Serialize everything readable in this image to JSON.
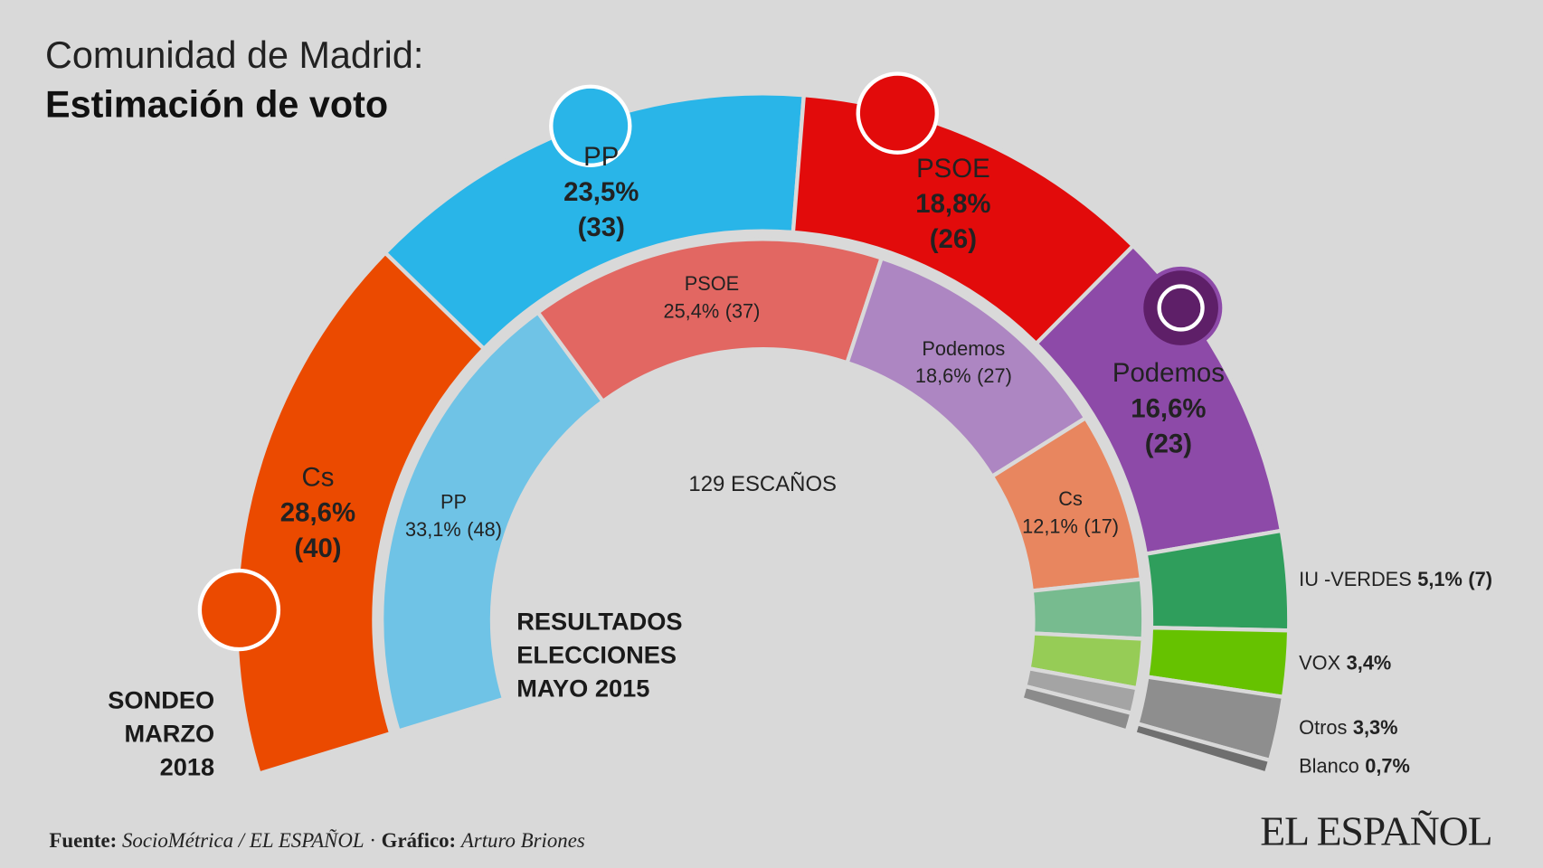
{
  "chart_data": {
    "type": "semi-donut",
    "title": "Comunidad de Madrid:",
    "subtitle": "Estimación de voto",
    "center_label": "129 ESCAÑOS",
    "series": [
      {
        "name": "SONDEO\nMARZO\n2018",
        "categories": [
          "Cs",
          "PP",
          "PSOE",
          "Podemos",
          "IU -VERDES",
          "VOX",
          "Otros",
          "Blanco"
        ],
        "values": [
          28.6,
          23.5,
          18.8,
          16.6,
          5.1,
          3.4,
          3.3,
          0.7
        ],
        "value_labels": [
          "28,6%",
          "23,5%",
          "18,8%",
          "16,6%",
          "5,1%",
          "3,4%",
          "3,3%",
          "0,7%"
        ],
        "seats": [
          40,
          33,
          26,
          23,
          7,
          null,
          null,
          null
        ],
        "seat_labels": [
          "(40)",
          "(33)",
          "(26)",
          "(23)",
          "(7)",
          null,
          null,
          null
        ],
        "colors": [
          "#eb4a00",
          "#29b5e8",
          "#e20b0b",
          "#8d4aa8",
          "#2f9e5c",
          "#66c200",
          "#8e8e8e",
          "#6f6f6f"
        ]
      },
      {
        "name": "RESULTADOS\nELECCIONES\nMAYO 2015",
        "categories": [
          "PP",
          "PSOE",
          "Podemos",
          "Cs",
          null,
          null,
          null,
          null
        ],
        "values": [
          33.1,
          25.4,
          18.6,
          12.1,
          4.2,
          3.5,
          1.8,
          1.3
        ],
        "value_labels": [
          "33,1%",
          "25,4%",
          "18,6%",
          "12,1%",
          null,
          null,
          null,
          null
        ],
        "seats": [
          48,
          37,
          27,
          17,
          null,
          null,
          null,
          null
        ],
        "seat_labels": [
          "(48)",
          "(37)",
          "(27)",
          "(17)",
          null,
          null,
          null,
          null
        ],
        "colors": [
          "#6fc3e6",
          "#e26762",
          "#ad86c2",
          "#e8865f",
          "#77bb8f",
          "#96cc56",
          "#a4a4a4",
          "#8b8b8b"
        ]
      }
    ],
    "footer": {
      "source_label": "Fuente:",
      "source": "SocioMétrica / EL ESPAÑOL",
      "separator": "·",
      "graphic_label": "Gráfico:",
      "graphic": "Arturo Briones"
    },
    "brand": "EL ESPAÑOL"
  }
}
